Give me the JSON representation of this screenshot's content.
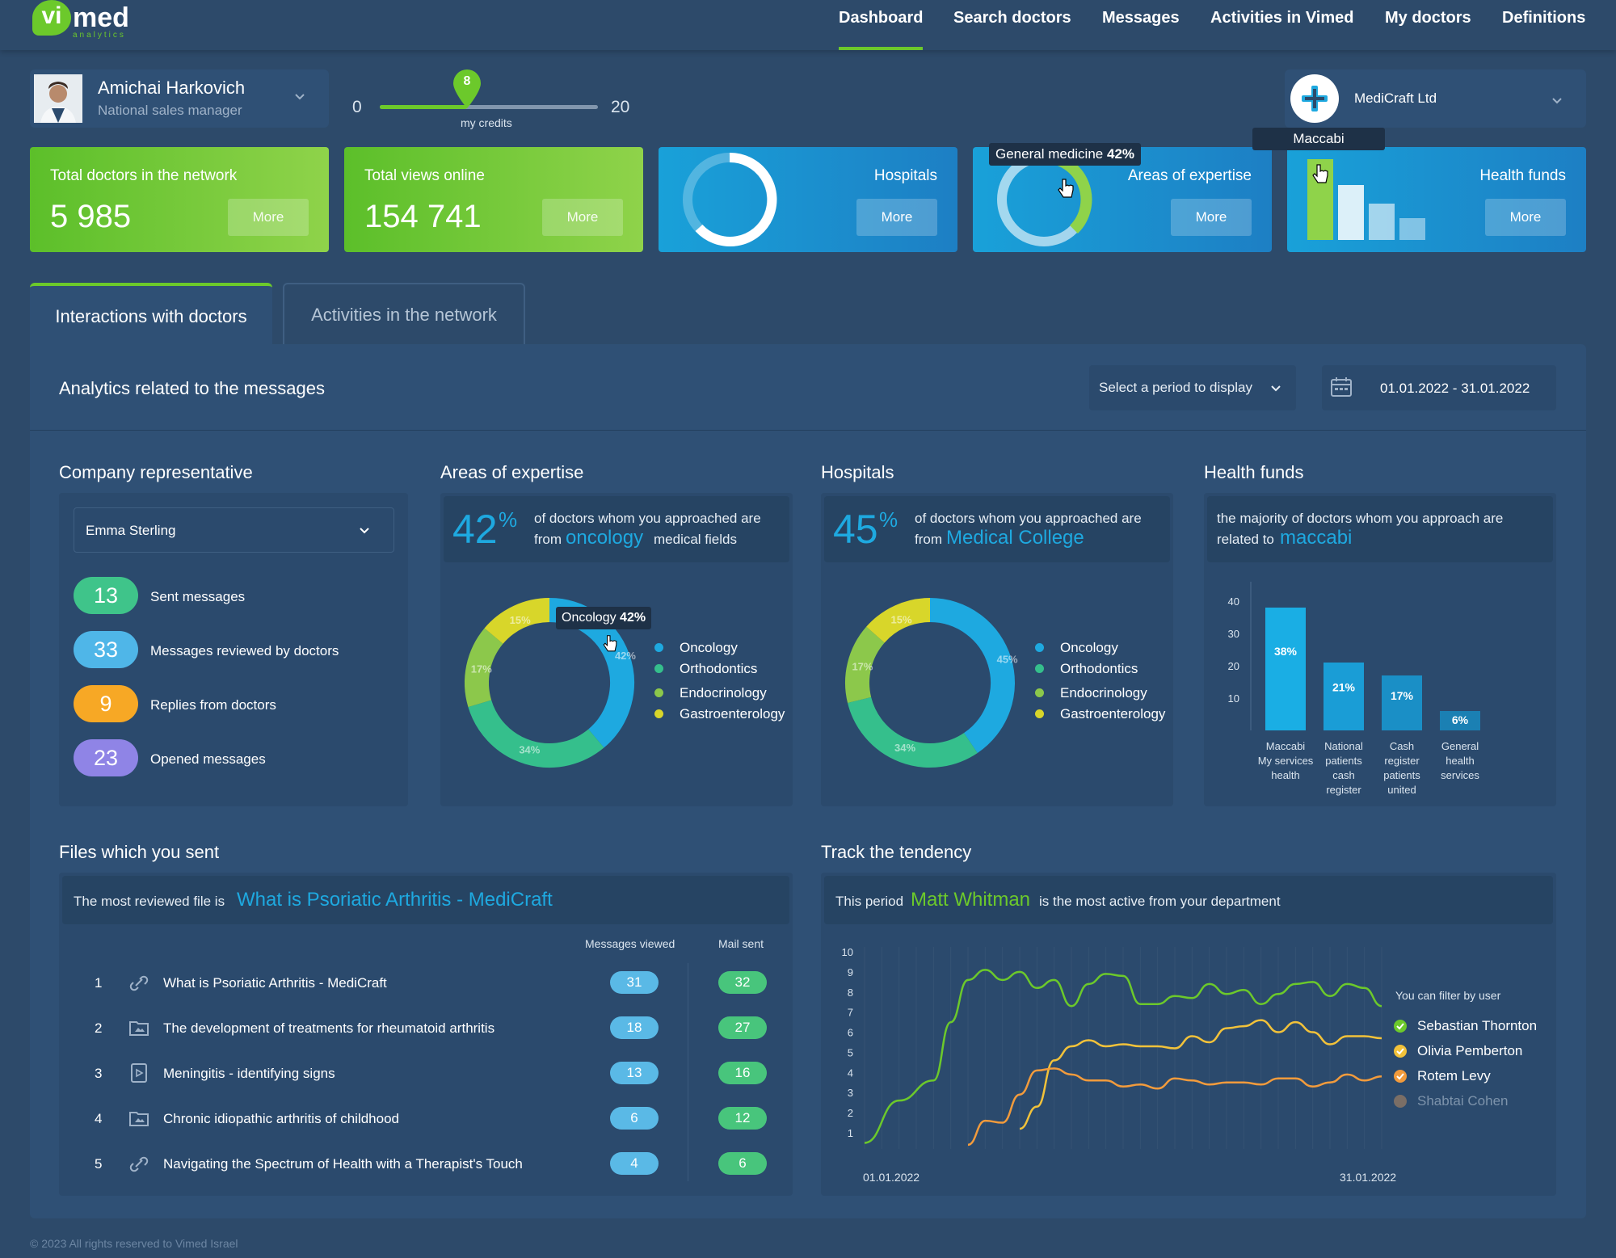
{
  "brand": {
    "logo_text_vi": "vi",
    "logo_text_med": "med",
    "logo_sub": "analytics"
  },
  "nav": [
    {
      "label": "Dashboard",
      "active": true
    },
    {
      "label": "Search doctors"
    },
    {
      "label": "Messages"
    },
    {
      "label": "Activities in Vimed"
    },
    {
      "label": "My doctors"
    },
    {
      "label": "Definitions"
    }
  ],
  "user": {
    "name": "Amichai Harkovich",
    "role": "National sales manager"
  },
  "credits": {
    "min": "0",
    "max": "20",
    "value": "8",
    "label": "my credits",
    "fraction": 0.4
  },
  "company": {
    "name": "MediCraft Ltd"
  },
  "kpis": {
    "doctors": {
      "label": "Total doctors in the network",
      "value": "5 985",
      "more": "More"
    },
    "views": {
      "label": "Total views online",
      "value": "154 741",
      "more": "More"
    },
    "hospitals": {
      "label": "Hospitals",
      "more": "More"
    },
    "areas": {
      "label": "Areas of expertise",
      "more": "More",
      "tooltip_label": "General medicine",
      "tooltip_value": "42%"
    },
    "funds": {
      "label": "Health funds",
      "more": "More",
      "tooltip": "Maccabi"
    }
  },
  "tabs": [
    {
      "label": "Interactions with doctors",
      "active": true
    },
    {
      "label": "Activities in the network"
    }
  ],
  "analytics": {
    "title": "Analytics related to the messages",
    "period_placeholder": "Select a period to display",
    "date_range": "01.01.2022 - 31.01.2022"
  },
  "rep": {
    "title": "Company representative",
    "selected": "Emma Sterling",
    "stats": [
      {
        "value": "13",
        "label": "Sent messages",
        "color": "#3fc48a"
      },
      {
        "value": "33",
        "label": "Messages reviewed by doctors",
        "color": "#4fb6e8"
      },
      {
        "value": "9",
        "label": "Replies from doctors",
        "color": "#f7a825"
      },
      {
        "value": "23",
        "label": "Opened messages",
        "color": "#8f84e6"
      }
    ]
  },
  "areas": {
    "title": "Areas of expertise",
    "pct": "42",
    "pct_sign": "%",
    "text1": "of doctors whom you approached are",
    "text_from": "from",
    "highlight": "oncology",
    "text2": "medical fields",
    "tooltip_label": "Oncology",
    "tooltip_value": "42%"
  },
  "hospitals": {
    "title": "Hospitals",
    "pct": "45",
    "pct_sign": "%",
    "text1": "of doctors whom you approached are",
    "text_from": "from",
    "highlight": "Medical College"
  },
  "funds": {
    "title": "Health funds",
    "text1": "the majority of doctors whom you approach are",
    "text_from": "related to",
    "highlight": "maccabi"
  },
  "files": {
    "title": "Files which you sent",
    "intro": "The most reviewed file is",
    "highlight": "What is Psoriatic Arthritis - MediCraft",
    "col_viewed": "Messages viewed",
    "col_sent": "Mail sent",
    "rows": [
      {
        "n": "1",
        "icon": "link-icon",
        "name": "What is Psoriatic Arthritis - MediCraft",
        "viewed": "31",
        "sent": "32"
      },
      {
        "n": "2",
        "icon": "folder-image-icon",
        "name": "The development of treatments for rheumatoid arthritis",
        "viewed": "18",
        "sent": "27"
      },
      {
        "n": "3",
        "icon": "video-file-icon",
        "name": "Meningitis - identifying signs",
        "viewed": "13",
        "sent": "16"
      },
      {
        "n": "4",
        "icon": "folder-image-icon",
        "name": "Chronic idiopathic arthritis of childhood",
        "viewed": "6",
        "sent": "12"
      },
      {
        "n": "5",
        "icon": "link-icon",
        "name": "Navigating the Spectrum of Health with a Therapist's Touch",
        "viewed": "4",
        "sent": "6"
      }
    ]
  },
  "track": {
    "title": "Track the tendency",
    "intro1": "This period",
    "highlight": "Matt Whitman",
    "intro2": "is the most active from your department",
    "filter_label": "You can filter by user",
    "users": [
      {
        "name": "Sebastian Thornton",
        "color": "#6cc92b",
        "active": true
      },
      {
        "name": "Olivia Pemberton",
        "color": "#f2c23a",
        "active": true
      },
      {
        "name": "Rotem Levy",
        "color": "#f29b3c",
        "active": true
      },
      {
        "name": "Shabtai Cohen",
        "color": "#7a6e66",
        "active": false
      }
    ]
  },
  "footer": "© 2023 All rights reserved to Vimed Israel",
  "chart_data": [
    {
      "type": "pie",
      "name": "Areas of expertise",
      "categories": [
        "Oncology",
        "Orthodontics",
        "Endocrinology",
        "Gastroenterology"
      ],
      "values": [
        42,
        34,
        17,
        15
      ],
      "labels": [
        "42%",
        "34%",
        "17%",
        "15%"
      ],
      "colors": [
        "#1ea9e0",
        "#35bf8c",
        "#8cc84b",
        "#d8d62a"
      ]
    },
    {
      "type": "pie",
      "name": "Hospitals",
      "categories": [
        "Oncology",
        "Orthodontics",
        "Endocrinology",
        "Gastroenterology"
      ],
      "values": [
        45,
        34,
        17,
        15
      ],
      "labels": [
        "45%",
        "34%",
        "17%",
        "15%"
      ],
      "colors": [
        "#1ea9e0",
        "#35bf8c",
        "#8cc84b",
        "#d8d62a"
      ]
    },
    {
      "type": "bar",
      "name": "Health funds",
      "categories": [
        "Maccabi My services health",
        "National patients cash register",
        "Cash register patients united",
        "General health services"
      ],
      "values": [
        38,
        21,
        17,
        6
      ],
      "labels": [
        "38%",
        "21%",
        "17%",
        "6%"
      ],
      "ylim": [
        0,
        45
      ],
      "yticks": [
        10,
        20,
        30,
        40
      ],
      "colors": [
        "#1aaee4",
        "#1a9dd6",
        "#1a8fc6",
        "#1b80b3"
      ]
    },
    {
      "type": "line",
      "name": "Track the tendency",
      "x_start": "01.01.2022",
      "x_end": "31.01.2022",
      "ylim": [
        0,
        10
      ],
      "yticks": [
        1,
        2,
        3,
        4,
        5,
        6,
        7,
        8,
        9,
        10
      ],
      "series": [
        {
          "name": "Sebastian Thornton",
          "color": "#6cc92b",
          "x": [
            1,
            3,
            5,
            6,
            7,
            8,
            9,
            10,
            11,
            12,
            13,
            14,
            15,
            16,
            17,
            18,
            19,
            20,
            21,
            22,
            23,
            24,
            25,
            26,
            27,
            28,
            29,
            30,
            31
          ],
          "y": [
            0.5,
            2.6,
            3.6,
            6.5,
            8.6,
            9.1,
            8.6,
            9.0,
            8.2,
            8.6,
            7.3,
            8.4,
            8.9,
            8.8,
            7.4,
            7.4,
            7.8,
            7.7,
            8.4,
            7.9,
            8.1,
            7.4,
            7.9,
            8.4,
            8.5,
            7.8,
            8.4,
            8.2,
            7.3
          ]
        },
        {
          "name": "Olivia Pemberton",
          "color": "#f2c23a",
          "x": [
            10,
            11,
            12,
            13,
            14,
            15,
            16,
            17,
            18,
            19,
            20,
            21,
            22,
            23,
            24,
            25,
            26,
            27,
            28,
            29,
            30,
            31
          ],
          "y": [
            1.2,
            2.3,
            4.6,
            5.3,
            5.6,
            5.3,
            5.4,
            5.3,
            5.3,
            5.2,
            5.8,
            5.5,
            6.2,
            6.3,
            6.6,
            6.0,
            6.5,
            6.0,
            5.4,
            5.8,
            5.8,
            5.7
          ]
        },
        {
          "name": "Rotem Levy",
          "color": "#f29b3c",
          "x": [
            7,
            8,
            9,
            10,
            11,
            12,
            13,
            14,
            15,
            16,
            17,
            18,
            19,
            20,
            21,
            22,
            23,
            24,
            25,
            26,
            27,
            28,
            29,
            30,
            31
          ],
          "y": [
            0.4,
            1.6,
            1.5,
            2.9,
            4.1,
            4.2,
            3.9,
            3.6,
            3.6,
            3.3,
            3.4,
            3.2,
            3.7,
            3.6,
            3.4,
            3.5,
            3.5,
            3.4,
            3.7,
            3.7,
            3.3,
            3.5,
            3.9,
            3.6,
            3.8
          ]
        }
      ]
    }
  ]
}
